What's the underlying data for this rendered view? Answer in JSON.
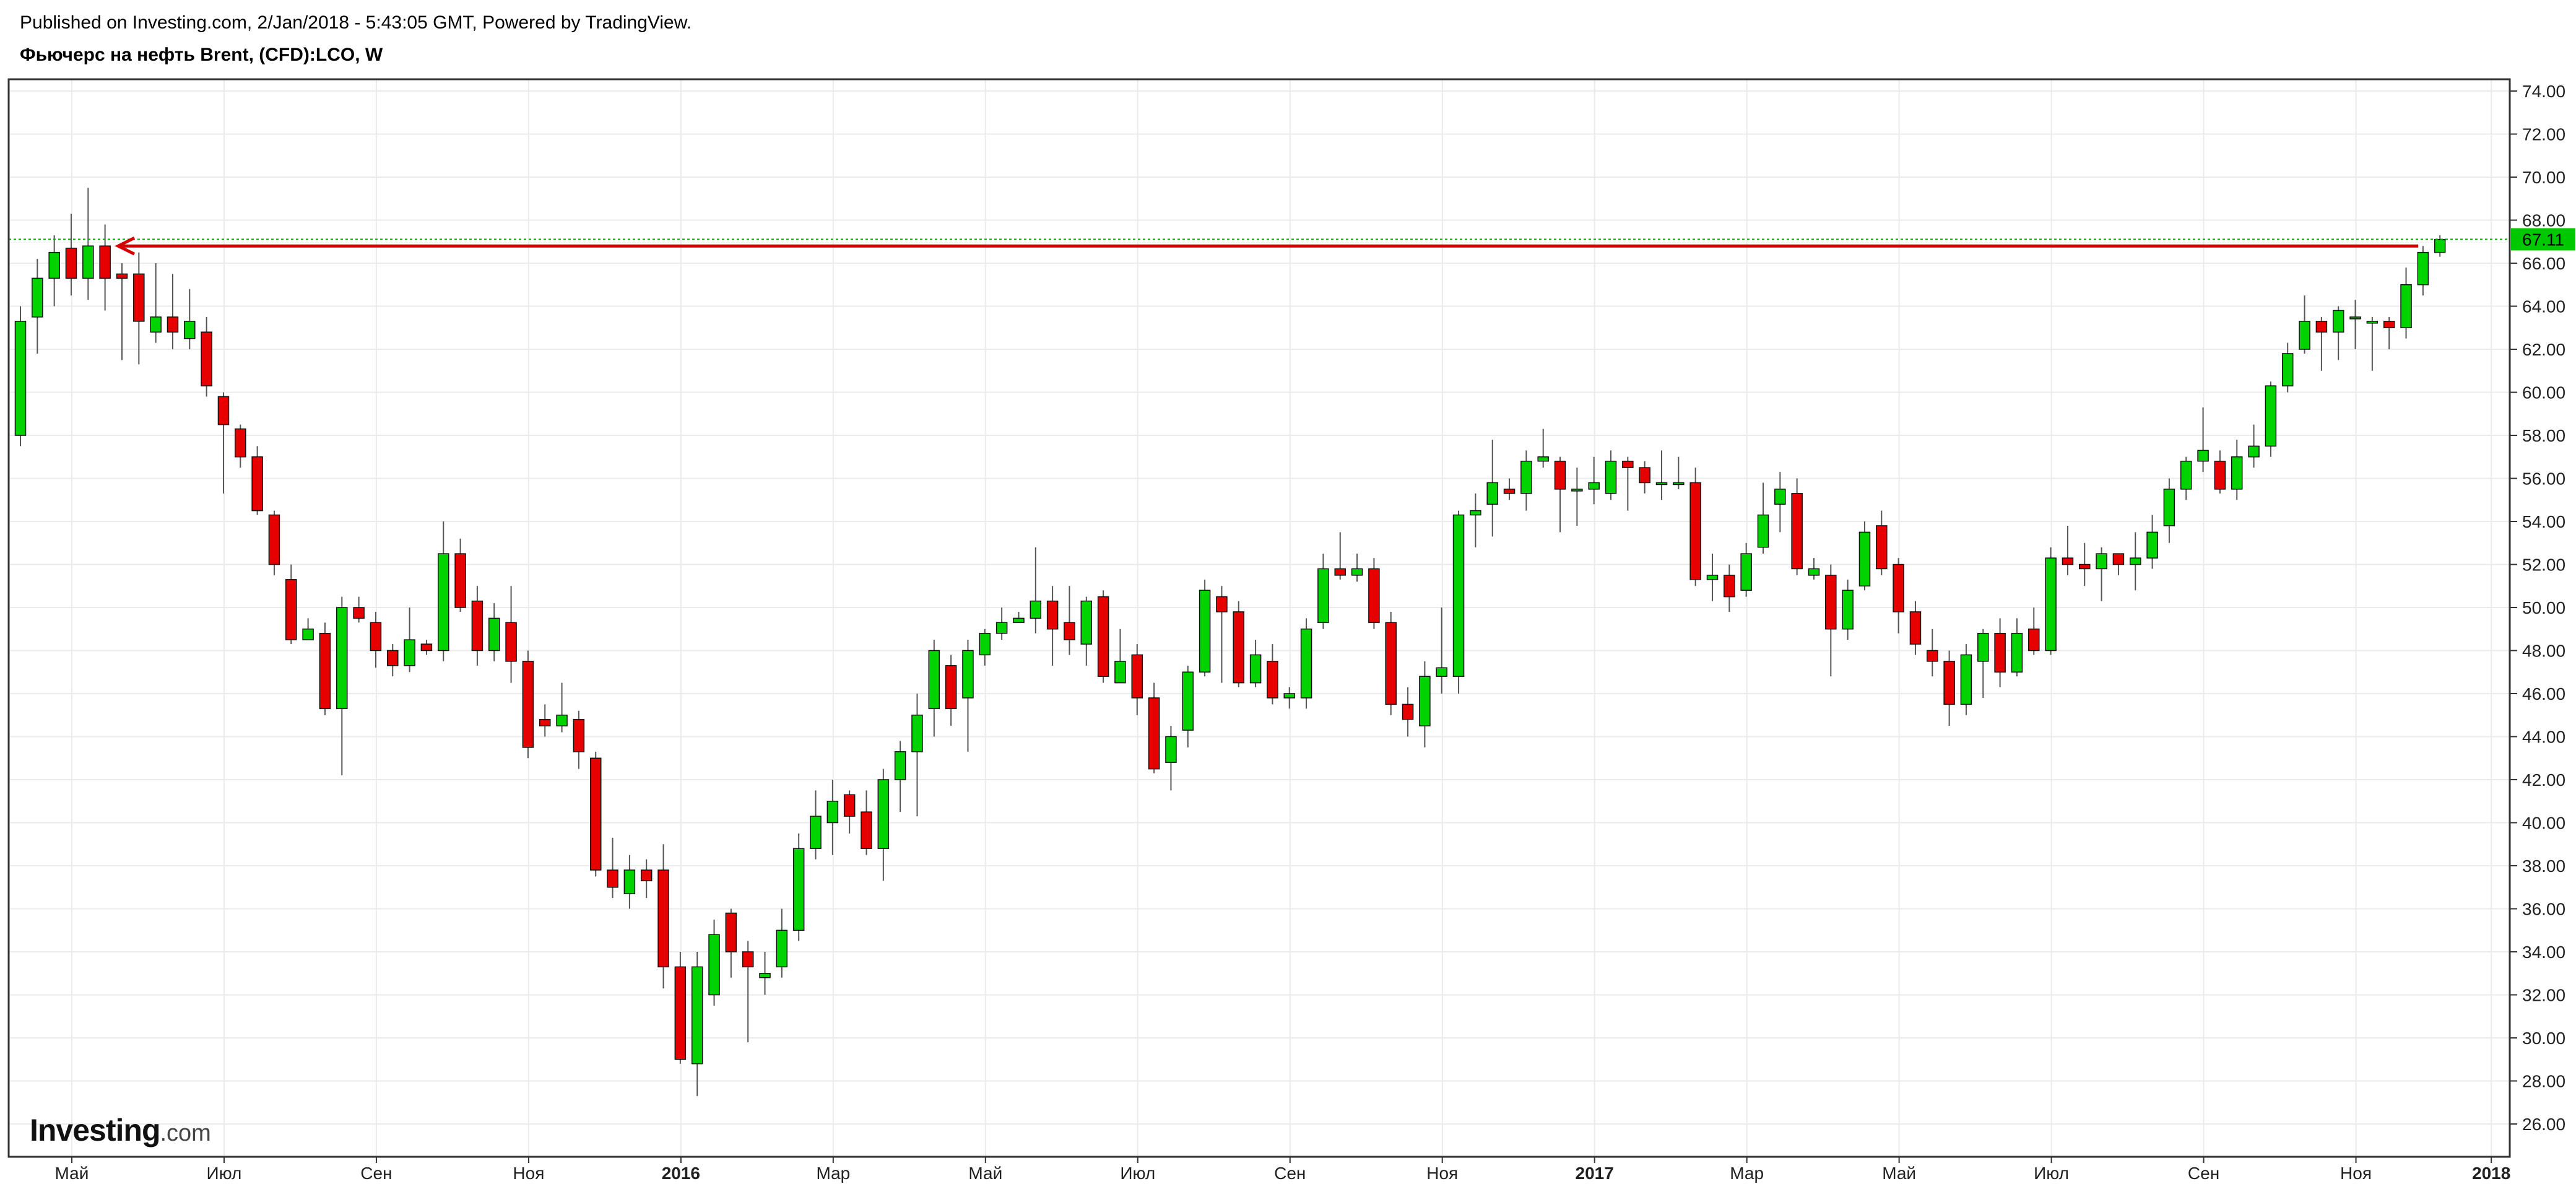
{
  "header": {
    "published": "Published on Investing.com, 2/Jan/2018 - 5:43:05 GMT, Powered by TradingView.",
    "title": "Фьючерс на нефть Brent, (CFD):LCO, W"
  },
  "logo": {
    "main": "Investing",
    "suffix": ".com"
  },
  "colors": {
    "up": "#00d300",
    "down": "#e60000",
    "wick": "#555555",
    "grid": "#ebebeb",
    "frame": "#333333",
    "price_line": "#00b000",
    "arrow": "#d40000",
    "price_label_bg": "#00c800"
  },
  "chart_data": {
    "type": "candlestick",
    "ylim": [
      25,
      75
    ],
    "y_ticks": [
      "26.00",
      "28.00",
      "30.00",
      "32.00",
      "34.00",
      "36.00",
      "38.00",
      "40.00",
      "42.00",
      "44.00",
      "46.00",
      "48.00",
      "50.00",
      "52.00",
      "54.00",
      "56.00",
      "58.00",
      "60.00",
      "62.00",
      "64.00",
      "66.00",
      "68.00",
      "70.00",
      "72.00",
      "74.00"
    ],
    "x_ticks": [
      {
        "label": "Май",
        "bold": false
      },
      {
        "label": "Июл",
        "bold": false
      },
      {
        "label": "Сен",
        "bold": false
      },
      {
        "label": "Ноя",
        "bold": false
      },
      {
        "label": "2016",
        "bold": true
      },
      {
        "label": "Мар",
        "bold": false
      },
      {
        "label": "Май",
        "bold": false
      },
      {
        "label": "Июл",
        "bold": false
      },
      {
        "label": "Сен",
        "bold": false
      },
      {
        "label": "Ноя",
        "bold": false
      },
      {
        "label": "2017",
        "bold": true
      },
      {
        "label": "Мар",
        "bold": false
      },
      {
        "label": "Май",
        "bold": false
      },
      {
        "label": "Июл",
        "bold": false
      },
      {
        "label": "Сен",
        "bold": false
      },
      {
        "label": "Ноя",
        "bold": false
      },
      {
        "label": "2018",
        "bold": true
      }
    ],
    "last_price": "67.11",
    "last_value": 67.11,
    "arrow": {
      "from_value": 66.8
    },
    "candles": [
      [
        58.0,
        63.3,
        57.5,
        64.0
      ],
      [
        63.5,
        65.3,
        61.8,
        66.2
      ],
      [
        65.3,
        66.5,
        64.0,
        67.3
      ],
      [
        66.7,
        65.3,
        64.5,
        68.3
      ],
      [
        65.3,
        66.8,
        64.3,
        69.5
      ],
      [
        66.8,
        65.3,
        63.8,
        67.8
      ],
      [
        65.5,
        65.3,
        61.5,
        66.0
      ],
      [
        65.5,
        63.3,
        61.3,
        66.5
      ],
      [
        62.8,
        63.5,
        62.3,
        66.0
      ],
      [
        63.5,
        62.8,
        62.0,
        65.5
      ],
      [
        62.5,
        63.3,
        62.0,
        64.8
      ],
      [
        62.8,
        60.3,
        59.8,
        63.5
      ],
      [
        59.8,
        58.5,
        55.3,
        60.0
      ],
      [
        58.3,
        57.0,
        56.5,
        58.5
      ],
      [
        57.0,
        54.5,
        54.3,
        57.5
      ],
      [
        54.3,
        52.0,
        51.5,
        54.5
      ],
      [
        51.3,
        48.5,
        48.3,
        52.0
      ],
      [
        48.5,
        49.0,
        48.5,
        49.5
      ],
      [
        48.8,
        45.3,
        45.0,
        49.3
      ],
      [
        45.3,
        50.0,
        42.2,
        50.5
      ],
      [
        50.0,
        49.5,
        49.3,
        50.5
      ],
      [
        49.3,
        48.0,
        47.2,
        49.8
      ],
      [
        48.0,
        47.3,
        46.8,
        48.3
      ],
      [
        47.3,
        48.5,
        47.0,
        50.0
      ],
      [
        48.3,
        48.0,
        47.8,
        48.5
      ],
      [
        48.0,
        52.5,
        47.5,
        54.0
      ],
      [
        52.5,
        50.0,
        49.8,
        53.2
      ],
      [
        50.3,
        48.0,
        47.3,
        51.0
      ],
      [
        48.0,
        49.5,
        47.5,
        50.2
      ],
      [
        49.3,
        47.5,
        46.5,
        51.0
      ],
      [
        47.5,
        43.5,
        43.0,
        48.0
      ],
      [
        44.8,
        44.5,
        44.0,
        45.5
      ],
      [
        44.5,
        45.0,
        44.2,
        46.5
      ],
      [
        44.8,
        43.3,
        42.5,
        45.2
      ],
      [
        43.0,
        37.8,
        37.5,
        43.3
      ],
      [
        37.8,
        37.0,
        36.5,
        39.3
      ],
      [
        36.7,
        37.8,
        36.0,
        38.5
      ],
      [
        37.8,
        37.3,
        36.5,
        38.3
      ],
      [
        37.8,
        33.3,
        32.3,
        39.0
      ],
      [
        33.3,
        29.0,
        28.8,
        34.0
      ],
      [
        28.8,
        33.3,
        27.3,
        34.0
      ],
      [
        32.0,
        34.8,
        31.5,
        35.5
      ],
      [
        35.8,
        34.0,
        32.8,
        36.0
      ],
      [
        34.0,
        33.3,
        29.8,
        34.5
      ],
      [
        32.8,
        33.0,
        32.0,
        34.0
      ],
      [
        33.3,
        35.0,
        32.8,
        36.0
      ],
      [
        35.0,
        38.8,
        34.5,
        39.5
      ],
      [
        38.8,
        40.3,
        38.3,
        41.5
      ],
      [
        40.0,
        41.0,
        38.5,
        42.0
      ],
      [
        41.3,
        40.3,
        39.5,
        41.5
      ],
      [
        40.5,
        38.8,
        38.5,
        41.5
      ],
      [
        38.8,
        42.0,
        37.3,
        42.5
      ],
      [
        42.0,
        43.3,
        40.5,
        43.8
      ],
      [
        43.3,
        45.0,
        40.3,
        46.0
      ],
      [
        45.3,
        48.0,
        44.0,
        48.5
      ],
      [
        47.3,
        45.3,
        44.5,
        47.8
      ],
      [
        45.8,
        48.0,
        43.3,
        48.5
      ],
      [
        47.8,
        48.8,
        47.3,
        49.0
      ],
      [
        48.8,
        49.3,
        48.5,
        50.0
      ],
      [
        49.3,
        49.5,
        49.3,
        49.8
      ],
      [
        49.5,
        50.3,
        48.8,
        52.8
      ],
      [
        50.3,
        49.0,
        47.3,
        51.0
      ],
      [
        49.3,
        48.5,
        47.8,
        51.0
      ],
      [
        48.3,
        50.3,
        47.3,
        50.5
      ],
      [
        50.5,
        46.8,
        46.5,
        50.8
      ],
      [
        46.5,
        47.5,
        46.5,
        49.0
      ],
      [
        47.8,
        45.8,
        45.0,
        48.3
      ],
      [
        45.8,
        42.5,
        42.3,
        46.5
      ],
      [
        42.8,
        44.0,
        41.5,
        44.5
      ],
      [
        44.3,
        47.0,
        43.5,
        47.3
      ],
      [
        47.0,
        50.8,
        46.8,
        51.3
      ],
      [
        50.5,
        49.8,
        46.5,
        51.0
      ],
      [
        49.8,
        46.5,
        46.3,
        50.3
      ],
      [
        46.5,
        47.8,
        46.3,
        48.5
      ],
      [
        47.5,
        45.8,
        45.5,
        48.3
      ],
      [
        45.8,
        46.0,
        45.3,
        46.3
      ],
      [
        45.8,
        49.0,
        45.3,
        49.5
      ],
      [
        49.3,
        51.8,
        49.0,
        52.5
      ],
      [
        51.8,
        51.5,
        51.3,
        53.5
      ],
      [
        51.5,
        51.8,
        51.2,
        52.5
      ],
      [
        51.8,
        49.3,
        49.0,
        52.3
      ],
      [
        49.3,
        45.5,
        45.0,
        49.8
      ],
      [
        45.5,
        44.8,
        44.0,
        46.3
      ],
      [
        44.5,
        46.8,
        43.5,
        47.5
      ],
      [
        46.8,
        47.2,
        46.0,
        50.0
      ],
      [
        46.8,
        54.3,
        46.0,
        54.5
      ],
      [
        54.3,
        54.5,
        52.8,
        55.3
      ],
      [
        54.8,
        55.8,
        53.3,
        57.8
      ],
      [
        55.5,
        55.3,
        55.0,
        56.0
      ],
      [
        55.3,
        56.8,
        54.5,
        57.3
      ],
      [
        56.8,
        57.0,
        56.5,
        58.3
      ],
      [
        56.8,
        55.5,
        53.5,
        57.0
      ],
      [
        55.5,
        55.5,
        53.8,
        56.5
      ],
      [
        55.5,
        55.8,
        54.8,
        57.0
      ],
      [
        55.3,
        56.8,
        55.0,
        57.3
      ],
      [
        56.8,
        56.5,
        54.5,
        57.0
      ],
      [
        56.5,
        55.8,
        55.3,
        56.8
      ],
      [
        55.8,
        55.8,
        55.0,
        57.3
      ],
      [
        55.8,
        55.8,
        55.5,
        57.0
      ],
      [
        55.8,
        51.3,
        51.0,
        56.5
      ],
      [
        51.3,
        51.5,
        50.3,
        52.5
      ],
      [
        51.5,
        50.5,
        49.8,
        52.0
      ],
      [
        50.8,
        52.5,
        50.5,
        53.0
      ],
      [
        52.8,
        54.3,
        52.5,
        55.8
      ],
      [
        54.8,
        55.5,
        53.5,
        56.3
      ],
      [
        55.3,
        51.8,
        51.5,
        56.0
      ],
      [
        51.5,
        51.8,
        51.3,
        52.3
      ],
      [
        51.5,
        49.0,
        46.8,
        52.0
      ],
      [
        49.0,
        50.8,
        48.5,
        51.3
      ],
      [
        51.0,
        53.5,
        50.8,
        54.0
      ],
      [
        53.8,
        51.8,
        51.5,
        54.5
      ],
      [
        52.0,
        49.8,
        48.8,
        52.3
      ],
      [
        49.8,
        48.3,
        47.8,
        50.3
      ],
      [
        48.0,
        47.5,
        46.8,
        49.0
      ],
      [
        47.5,
        45.5,
        44.5,
        48.0
      ],
      [
        45.5,
        47.8,
        45.0,
        48.3
      ],
      [
        47.5,
        48.8,
        45.8,
        49.0
      ],
      [
        48.8,
        47.0,
        46.3,
        49.5
      ],
      [
        47.0,
        48.8,
        46.8,
        49.5
      ],
      [
        49.0,
        48.0,
        47.8,
        50.0
      ],
      [
        48.0,
        52.3,
        47.8,
        52.8
      ],
      [
        52.3,
        52.0,
        51.5,
        53.8
      ],
      [
        52.0,
        51.8,
        51.0,
        53.0
      ],
      [
        51.8,
        52.5,
        50.3,
        52.8
      ],
      [
        52.5,
        52.0,
        51.5,
        52.5
      ],
      [
        52.0,
        52.3,
        50.8,
        53.5
      ],
      [
        52.3,
        53.5,
        51.8,
        54.3
      ],
      [
        53.8,
        55.5,
        53.0,
        56.0
      ],
      [
        55.5,
        56.8,
        55.0,
        57.0
      ],
      [
        56.8,
        57.3,
        56.3,
        59.3
      ],
      [
        56.8,
        55.5,
        55.3,
        57.3
      ],
      [
        55.5,
        57.0,
        55.0,
        57.8
      ],
      [
        57.0,
        57.5,
        56.5,
        58.5
      ],
      [
        57.5,
        60.3,
        57.0,
        60.5
      ],
      [
        60.3,
        61.8,
        60.0,
        62.3
      ],
      [
        62.0,
        63.3,
        61.8,
        64.5
      ],
      [
        63.3,
        62.8,
        61.0,
        63.5
      ],
      [
        62.8,
        63.8,
        61.5,
        64.0
      ],
      [
        63.5,
        63.5,
        62.0,
        64.3
      ],
      [
        63.3,
        63.3,
        61.0,
        63.5
      ],
      [
        63.3,
        63.0,
        62.0,
        63.5
      ],
      [
        63.0,
        65.0,
        62.5,
        65.8
      ],
      [
        65.0,
        66.5,
        64.5,
        66.8
      ],
      [
        66.5,
        67.1,
        66.3,
        67.3
      ]
    ]
  }
}
